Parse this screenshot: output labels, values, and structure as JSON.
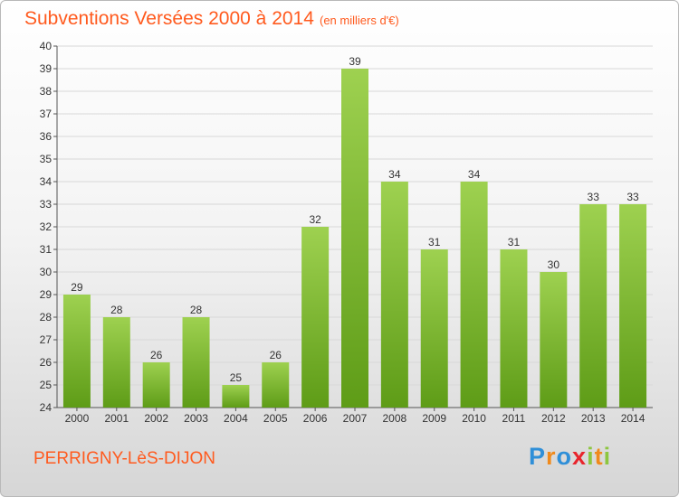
{
  "header": {
    "title": "Subventions Versées 2000 à 2014",
    "unit_note": "(en milliers d'€)"
  },
  "footer": {
    "location": "PERRIGNY-LèS-DIJON",
    "logo_text": "Proxiti"
  },
  "colors": {
    "accent": "#ff5a1e",
    "bar_top": "#9ed150",
    "bar_bottom": "#5e9c17",
    "grid": "#d8d8d8"
  },
  "chart_data": {
    "type": "bar",
    "title": "Subventions Versées 2000 à 2014",
    "subtitle": "(en milliers d'€)",
    "xlabel": "",
    "ylabel": "",
    "categories": [
      "2000",
      "2001",
      "2002",
      "2003",
      "2004",
      "2005",
      "2006",
      "2007",
      "2008",
      "2009",
      "2010",
      "2011",
      "2012",
      "2013",
      "2014"
    ],
    "values": [
      29,
      28,
      26,
      28,
      25,
      26,
      32,
      39,
      34,
      31,
      34,
      31,
      30,
      33,
      33
    ],
    "ylim": [
      24,
      40
    ],
    "yticks": [
      "24",
      "25",
      "26",
      "27",
      "28",
      "29",
      "30",
      "31",
      "32",
      "33",
      "34",
      "35",
      "36",
      "37",
      "38",
      "39",
      "40"
    ],
    "grid": true,
    "data_labels": true
  }
}
